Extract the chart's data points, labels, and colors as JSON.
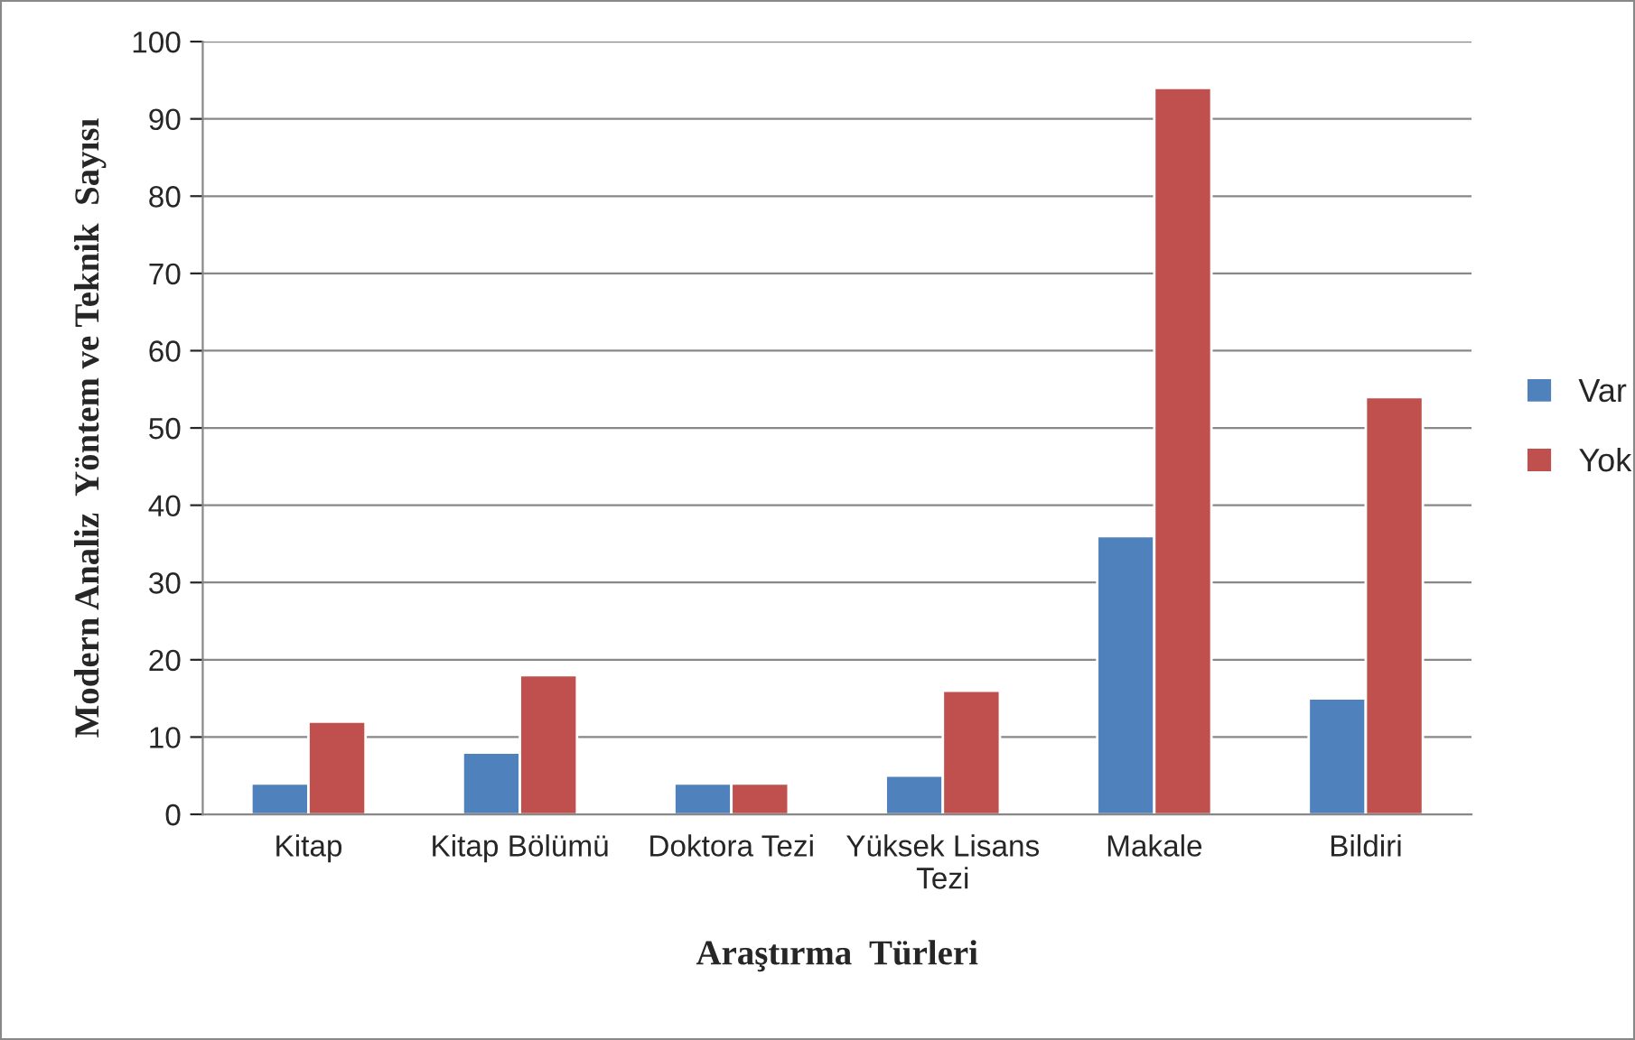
{
  "chart_data": {
    "type": "bar",
    "xlabel": "Araştırma  Türleri",
    "ylabel": "Modern Analiz  Yöntem ve Teknik  Sayısı",
    "categories": [
      "Kitap",
      "Kitap Bölümü",
      "Doktora Tezi",
      "Yüksek Lisans\nTezi",
      "Makale",
      "Bildiri"
    ],
    "series": [
      {
        "name": "Var",
        "color": "#4f81bd",
        "values": [
          4,
          8,
          4,
          5,
          36,
          15
        ]
      },
      {
        "name": "Yok",
        "color": "#c0504d",
        "values": [
          12,
          18,
          4,
          16,
          94,
          54
        ]
      }
    ],
    "ylim": [
      0,
      100
    ],
    "yticks": [
      0,
      10,
      20,
      30,
      40,
      50,
      60,
      70,
      80,
      90,
      100
    ],
    "grid": "y",
    "legend": "right"
  }
}
